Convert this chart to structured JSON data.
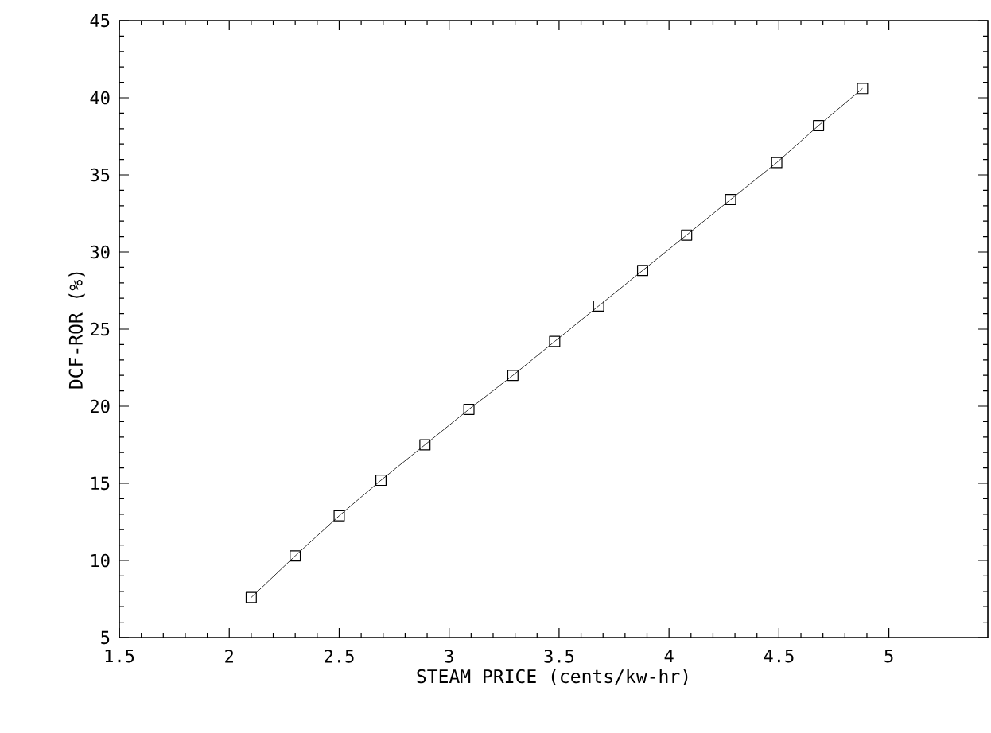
{
  "chart_data": {
    "type": "line",
    "xlabel": "STEAM PRICE  (cents/kw-hr)",
    "ylabel": "DCF-ROR  (%)",
    "x": [
      2.1,
      2.3,
      2.5,
      2.69,
      2.89,
      3.09,
      3.29,
      3.48,
      3.68,
      3.88,
      4.08,
      4.28,
      4.49,
      4.68,
      4.88
    ],
    "series": [
      {
        "color": "#000000",
        "values": [
          7.6,
          10.3,
          12.9,
          15.2,
          17.5,
          19.8,
          22.0,
          24.2,
          26.5,
          28.8,
          31.1,
          33.4,
          35.8,
          38.2,
          40.6
        ]
      }
    ],
    "xlim": [
      1.5,
      5.45
    ],
    "ylim": [
      5,
      45
    ],
    "xticks": [
      1.5,
      2,
      2.5,
      3,
      3.5,
      4,
      4.5,
      5
    ],
    "yticks": [
      5,
      10,
      15,
      20,
      25,
      30,
      35,
      40,
      45
    ],
    "marker": "square",
    "line_style": "solid"
  }
}
